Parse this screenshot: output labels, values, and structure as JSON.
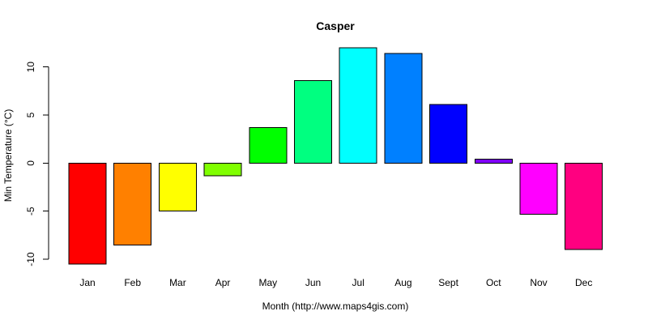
{
  "chart_data": {
    "type": "bar",
    "title": "Casper",
    "xlabel": "Month (http://www.maps4gis.com)",
    "ylabel": "Min Temperature (°C)",
    "ylim": [
      -10.5,
      12.0
    ],
    "yticks": [
      -10,
      -5,
      0,
      5,
      10
    ],
    "ytick_labels": [
      "-10",
      "-5",
      "0",
      "5",
      "10"
    ],
    "grid": false,
    "legend": "none",
    "categories": [
      "Jan",
      "Feb",
      "Mar",
      "Apr",
      "May",
      "Jun",
      "Jul",
      "Aug",
      "Sept",
      "Oct",
      "Nov",
      "Dec"
    ],
    "values": [
      -10.5,
      -8.5,
      -5.0,
      -1.3,
      3.7,
      8.6,
      12.0,
      11.4,
      6.1,
      0.4,
      -5.3,
      -9.0
    ],
    "colors": [
      "#FF0000",
      "#FF8000",
      "#FFFF00",
      "#80FF00",
      "#00FF00",
      "#00FF80",
      "#00FFFF",
      "#0080FF",
      "#0000FF",
      "#8000FF",
      "#FF00FF",
      "#FF0080"
    ]
  }
}
